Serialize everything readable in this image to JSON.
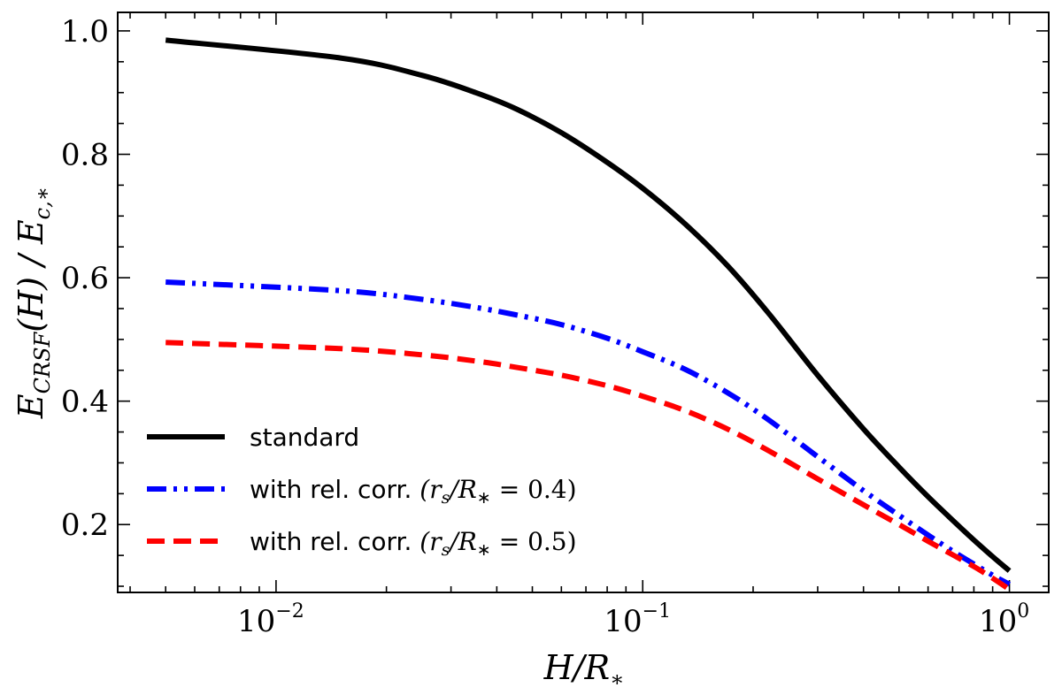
{
  "chart_data": {
    "type": "line",
    "title": "",
    "xlabel": "H/R∗",
    "ylabel": "E_CRSF(H) / E_c,∗",
    "xscale": "log",
    "xlim": [
      0.0037,
      1.28
    ],
    "ylim": [
      0.09,
      1.03
    ],
    "x_ticks": [
      {
        "value": 0.01,
        "base": "10",
        "exp": "−2"
      },
      {
        "value": 0.1,
        "base": "10",
        "exp": "−1"
      },
      {
        "value": 1,
        "base": "10",
        "exp": "0"
      }
    ],
    "y_ticks": [
      {
        "value": 0.2,
        "label": "0.2"
      },
      {
        "value": 0.4,
        "label": "0.4"
      },
      {
        "value": 0.6,
        "label": "0.6"
      },
      {
        "value": 0.8,
        "label": "0.8"
      },
      {
        "value": 1.0,
        "label": "1.0"
      }
    ],
    "grid": false,
    "legend_position": "bottom-left",
    "series": [
      {
        "name": "standard",
        "color": "#000000",
        "style": "solid",
        "x": [
          0.005,
          0.015,
          0.025,
          0.035,
          0.045,
          0.06,
          0.08,
          0.1,
          0.13,
          0.17,
          0.22,
          0.3,
          0.4,
          0.5,
          0.6,
          0.7,
          0.8,
          0.9,
          1.0
        ],
        "y": [
          0.985,
          0.956,
          0.928,
          0.9,
          0.874,
          0.835,
          0.787,
          0.745,
          0.688,
          0.62,
          0.543,
          0.442,
          0.355,
          0.293,
          0.245,
          0.207,
          0.175,
          0.148,
          0.125
        ]
      },
      {
        "name": "with rel. corr. (r_s/R∗ = 0.4)",
        "color": "#0000ff",
        "style": "dashdotdot",
        "x": [
          0.005,
          0.015,
          0.025,
          0.035,
          0.045,
          0.06,
          0.08,
          0.1,
          0.13,
          0.17,
          0.22,
          0.3,
          0.4,
          0.5,
          0.6,
          0.7,
          0.8,
          0.9,
          1.0
        ],
        "y": [
          0.593,
          0.579,
          0.565,
          0.552,
          0.54,
          0.524,
          0.502,
          0.48,
          0.452,
          0.414,
          0.37,
          0.31,
          0.255,
          0.215,
          0.183,
          0.157,
          0.136,
          0.118,
          0.103
        ]
      },
      {
        "name": "with rel. corr. (r_s/R∗ = 0.5)",
        "color": "#ff0000",
        "style": "dashed",
        "x": [
          0.005,
          0.015,
          0.025,
          0.035,
          0.045,
          0.06,
          0.08,
          0.1,
          0.13,
          0.17,
          0.22,
          0.3,
          0.4,
          0.5,
          0.6,
          0.7,
          0.8,
          0.9,
          1.0
        ],
        "y": [
          0.495,
          0.485,
          0.475,
          0.465,
          0.455,
          0.442,
          0.425,
          0.408,
          0.385,
          0.355,
          0.32,
          0.274,
          0.232,
          0.2,
          0.173,
          0.151,
          0.132,
          0.113,
          0.095
        ]
      }
    ]
  },
  "legend": {
    "standard": "standard",
    "rel04_prefix": "with rel. corr. ",
    "rel05_prefix": "with rel. corr. ",
    "rel04_math": "(r",
    "rel04_sub": "s",
    "rel04_mid": "/R",
    "rel04_star": "∗",
    "rel04_value": " = 0.4)",
    "rel05_math": "(r",
    "rel05_sub": "s",
    "rel05_mid": "/R",
    "rel05_star": "∗",
    "rel05_value": " = 0.5)"
  },
  "labels": {
    "x_main": "H/R",
    "x_sub": "∗",
    "y_E": "E",
    "y_sub1": "CRSF",
    "y_mid": "(H) / E",
    "y_sub2": "c,∗"
  }
}
